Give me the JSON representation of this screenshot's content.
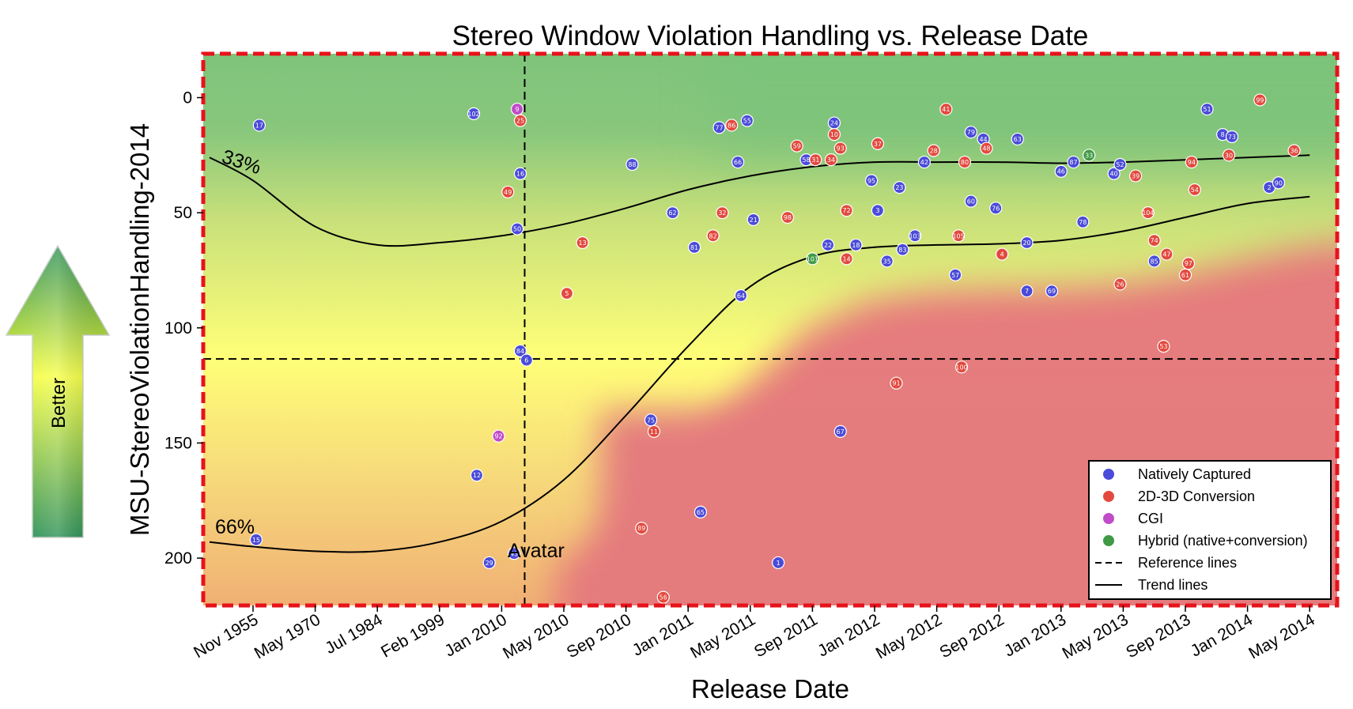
{
  "chart_data": {
    "type": "scatter",
    "title": "Stereo Window Violation Handling vs. Release Date",
    "xlabel": "Release Date",
    "ylabel": "MSU-StereoViolationHandling-2014",
    "x_ticks": [
      "Nov 1955",
      "May 1970",
      "Jul 1984",
      "Feb 1999",
      "Jan 2010",
      "May 2010",
      "Sep 2010",
      "Jan 2011",
      "May 2011",
      "Sep 2011",
      "Jan 2012",
      "May 2012",
      "Sep 2012",
      "Jan 2013",
      "May 2013",
      "Sep 2013",
      "Jan 2014",
      "May 2014"
    ],
    "x_note": "x positions are given as index along the categorical-like date axis (0 = Nov 1955 tick, 17 = May 2014 tick)",
    "ylim": [
      222,
      -18
    ],
    "y_ticks": [
      0,
      50,
      100,
      150,
      200
    ],
    "y_inverted": true,
    "grid": false,
    "legend_position": "lower-right",
    "legend": {
      "entries": [
        {
          "label": "Natively Captured",
          "marker": "circle",
          "color": "#4b4bd9"
        },
        {
          "label": "2D-3D Conversion",
          "marker": "circle",
          "color": "#e34a3f"
        },
        {
          "label": "CGI",
          "marker": "circle",
          "color": "#c04cc8"
        },
        {
          "label": "Hybrid (native+conversion)",
          "marker": "circle",
          "color": "#3f9a45"
        },
        {
          "label": "Reference lines",
          "marker": "dashed"
        },
        {
          "label": "Trend lines",
          "marker": "solid"
        }
      ]
    },
    "reference_lines": {
      "vertical_x": 4.37,
      "vertical_label": "Avatar",
      "horizontal_y": 113.5
    },
    "trend_lines": [
      {
        "label": "33%",
        "points": [
          [
            -0.7,
            26
          ],
          [
            0,
            36
          ],
          [
            1,
            56
          ],
          [
            2,
            64
          ],
          [
            3,
            63
          ],
          [
            4,
            60
          ],
          [
            5,
            55
          ],
          [
            6,
            48
          ],
          [
            7,
            40
          ],
          [
            8,
            34
          ],
          [
            9,
            30
          ],
          [
            10,
            28
          ],
          [
            11,
            28
          ],
          [
            12,
            28
          ],
          [
            13,
            28.5
          ],
          [
            14,
            28
          ],
          [
            15,
            27
          ],
          [
            16,
            26
          ],
          [
            17,
            25
          ]
        ]
      },
      {
        "label": "66%",
        "points": [
          [
            -0.7,
            193
          ],
          [
            0,
            195
          ],
          [
            1,
            197
          ],
          [
            2,
            197
          ],
          [
            3,
            193
          ],
          [
            4,
            184
          ],
          [
            5,
            166
          ],
          [
            6,
            138
          ],
          [
            7,
            108
          ],
          [
            8,
            82
          ],
          [
            9,
            69
          ],
          [
            10,
            65
          ],
          [
            11,
            64
          ],
          [
            12,
            63.5
          ],
          [
            13,
            62
          ],
          [
            14,
            58
          ],
          [
            15,
            52
          ],
          [
            16,
            46
          ],
          [
            17,
            43
          ]
        ]
      }
    ],
    "series": [
      {
        "name": "Natively Captured",
        "color": "#4b4bd9",
        "points": [
          {
            "x": 0.1,
            "y": 12,
            "label": "17"
          },
          {
            "x": 0.05,
            "y": 192,
            "label": "15"
          },
          {
            "x": 3.55,
            "y": 7,
            "label": "102"
          },
          {
            "x": 3.6,
            "y": 164,
            "label": "12"
          },
          {
            "x": 3.8,
            "y": 202,
            "label": "29"
          },
          {
            "x": 4.2,
            "y": 198,
            "label": "43"
          },
          {
            "x": 4.25,
            "y": 57,
            "label": "50"
          },
          {
            "x": 4.3,
            "y": 33,
            "label": "16"
          },
          {
            "x": 4.3,
            "y": 110,
            "label": "84"
          },
          {
            "x": 4.4,
            "y": 114,
            "label": "6"
          },
          {
            "x": 6.1,
            "y": 29,
            "label": "88"
          },
          {
            "x": 6.4,
            "y": 140,
            "label": "75"
          },
          {
            "x": 6.75,
            "y": 50,
            "label": "62"
          },
          {
            "x": 7.1,
            "y": 65,
            "label": "81"
          },
          {
            "x": 7.2,
            "y": 180,
            "label": "65"
          },
          {
            "x": 7.5,
            "y": 13,
            "label": "77"
          },
          {
            "x": 7.8,
            "y": 28,
            "label": "66"
          },
          {
            "x": 7.85,
            "y": 86,
            "label": "64"
          },
          {
            "x": 7.95,
            "y": 10,
            "label": "55"
          },
          {
            "x": 8.05,
            "y": 53,
            "label": "21"
          },
          {
            "x": 8.45,
            "y": 202,
            "label": "1"
          },
          {
            "x": 8.9,
            "y": 27,
            "label": "58"
          },
          {
            "x": 9.25,
            "y": 64,
            "label": "22"
          },
          {
            "x": 9.35,
            "y": 11,
            "label": "24"
          },
          {
            "x": 9.45,
            "y": 145,
            "label": "67"
          },
          {
            "x": 9.7,
            "y": 64,
            "label": "18"
          },
          {
            "x": 9.95,
            "y": 36,
            "label": "95"
          },
          {
            "x": 10.05,
            "y": 49,
            "label": "3"
          },
          {
            "x": 10.2,
            "y": 71,
            "label": "35"
          },
          {
            "x": 10.4,
            "y": 39,
            "label": "23"
          },
          {
            "x": 10.45,
            "y": 66,
            "label": "83"
          },
          {
            "x": 10.65,
            "y": 60,
            "label": "103"
          },
          {
            "x": 10.8,
            "y": 28,
            "label": "42"
          },
          {
            "x": 11.3,
            "y": 77,
            "label": "57"
          },
          {
            "x": 11.55,
            "y": 45,
            "label": "60"
          },
          {
            "x": 11.55,
            "y": 15,
            "label": "79"
          },
          {
            "x": 11.75,
            "y": 18,
            "label": "44"
          },
          {
            "x": 11.95,
            "y": 48,
            "label": "76"
          },
          {
            "x": 12.3,
            "y": 18,
            "label": "63"
          },
          {
            "x": 12.45,
            "y": 63,
            "label": "20"
          },
          {
            "x": 12.45,
            "y": 84,
            "label": "7"
          },
          {
            "x": 12.85,
            "y": 84,
            "label": "69"
          },
          {
            "x": 13.0,
            "y": 32,
            "label": "46"
          },
          {
            "x": 13.2,
            "y": 28,
            "label": "87"
          },
          {
            "x": 13.35,
            "y": 54,
            "label": "78"
          },
          {
            "x": 13.85,
            "y": 33,
            "label": "40"
          },
          {
            "x": 13.95,
            "y": 29,
            "label": "52"
          },
          {
            "x": 14.5,
            "y": 71,
            "label": "85"
          },
          {
            "x": 15.35,
            "y": 5,
            "label": "51"
          },
          {
            "x": 15.6,
            "y": 16,
            "label": "8"
          },
          {
            "x": 15.75,
            "y": 17,
            "label": "73"
          },
          {
            "x": 16.35,
            "y": 39,
            "label": "2"
          },
          {
            "x": 16.5,
            "y": 37,
            "label": "90"
          }
        ]
      },
      {
        "name": "2D-3D Conversion",
        "color": "#e34a3f",
        "points": [
          {
            "x": 4.1,
            "y": 41,
            "label": "49"
          },
          {
            "x": 4.3,
            "y": 10,
            "label": "25"
          },
          {
            "x": 5.05,
            "y": 85,
            "label": "5"
          },
          {
            "x": 5.3,
            "y": 63,
            "label": "13"
          },
          {
            "x": 6.25,
            "y": 187,
            "label": "89"
          },
          {
            "x": 6.45,
            "y": 145,
            "label": "11"
          },
          {
            "x": 6.6,
            "y": 217,
            "label": "56"
          },
          {
            "x": 7.4,
            "y": 60,
            "label": "82"
          },
          {
            "x": 7.55,
            "y": 50,
            "label": "32"
          },
          {
            "x": 7.7,
            "y": 12,
            "label": "86"
          },
          {
            "x": 8.6,
            "y": 52,
            "label": "98"
          },
          {
            "x": 8.75,
            "y": 21,
            "label": "59"
          },
          {
            "x": 9.05,
            "y": 27,
            "label": "31"
          },
          {
            "x": 9.3,
            "y": 27,
            "label": "34"
          },
          {
            "x": 9.35,
            "y": 16,
            "label": "10"
          },
          {
            "x": 9.45,
            "y": 22,
            "label": "93"
          },
          {
            "x": 9.55,
            "y": 49,
            "label": "72"
          },
          {
            "x": 9.55,
            "y": 70,
            "label": "14"
          },
          {
            "x": 10.05,
            "y": 20,
            "label": "37"
          },
          {
            "x": 10.35,
            "y": 124,
            "label": "91"
          },
          {
            "x": 10.95,
            "y": 23,
            "label": "28"
          },
          {
            "x": 11.15,
            "y": 5,
            "label": "41"
          },
          {
            "x": 11.35,
            "y": 60,
            "label": "105"
          },
          {
            "x": 11.4,
            "y": 117,
            "label": "100"
          },
          {
            "x": 11.45,
            "y": 28,
            "label": "80"
          },
          {
            "x": 11.8,
            "y": 22,
            "label": "48"
          },
          {
            "x": 12.05,
            "y": 68,
            "label": "4"
          },
          {
            "x": 13.95,
            "y": 81,
            "label": "26"
          },
          {
            "x": 14.2,
            "y": 34,
            "label": "39"
          },
          {
            "x": 14.4,
            "y": 50,
            "label": "104"
          },
          {
            "x": 14.5,
            "y": 62,
            "label": "74"
          },
          {
            "x": 14.65,
            "y": 108,
            "label": "53"
          },
          {
            "x": 14.7,
            "y": 68,
            "label": "47"
          },
          {
            "x": 15.0,
            "y": 77,
            "label": "61"
          },
          {
            "x": 15.05,
            "y": 72,
            "label": "97"
          },
          {
            "x": 15.1,
            "y": 28,
            "label": "94"
          },
          {
            "x": 15.15,
            "y": 40,
            "label": "54"
          },
          {
            "x": 15.7,
            "y": 25,
            "label": "30"
          },
          {
            "x": 16.2,
            "y": 1,
            "label": "99"
          },
          {
            "x": 16.75,
            "y": 23,
            "label": "36"
          }
        ]
      },
      {
        "name": "CGI",
        "color": "#c04cc8",
        "points": [
          {
            "x": 4.25,
            "y": 5,
            "label": "9"
          },
          {
            "x": 3.95,
            "y": 147,
            "label": "92"
          }
        ]
      },
      {
        "name": "Hybrid (native+conversion)",
        "color": "#3f9a45",
        "points": [
          {
            "x": 9.0,
            "y": 70,
            "label": "101"
          },
          {
            "x": 13.45,
            "y": 25,
            "label": "33"
          }
        ]
      }
    ],
    "annotations": {
      "avatar": "Avatar",
      "trend_33": "33%",
      "trend_66": "66%"
    },
    "side_arrow": {
      "label": "Better"
    }
  }
}
